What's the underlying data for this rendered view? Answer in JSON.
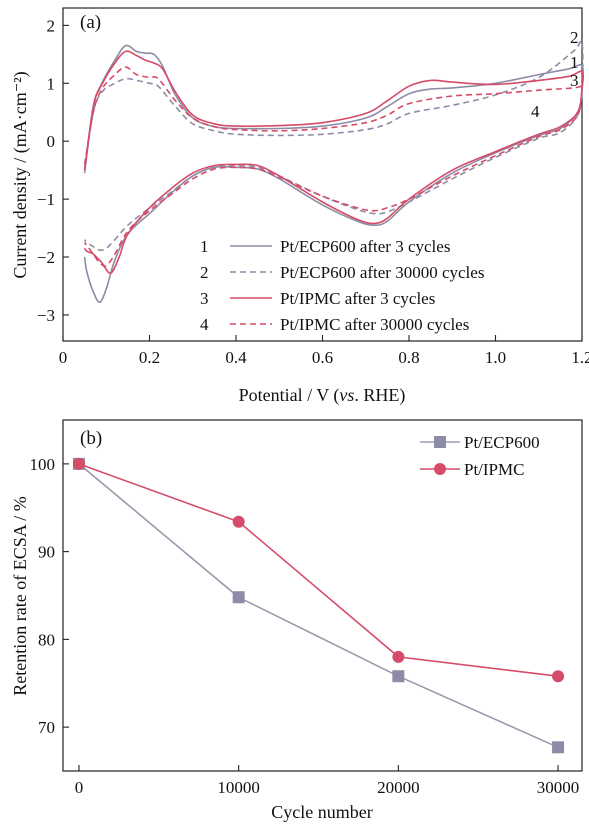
{
  "chart_data": [
    {
      "type": "line",
      "panel_label": "(a)",
      "xlabel_parts": [
        "Potential / V (",
        "vs",
        ". RHE)"
      ],
      "ylabel": "Current density / (mA·cm⁻²)",
      "xlim": [
        0,
        1.2
      ],
      "ylim": [
        -3.45,
        2.3
      ],
      "xticks": [
        0,
        0.2,
        0.4,
        0.6,
        0.8,
        1.0,
        1.2
      ],
      "xtick_labels": [
        "0",
        "0.2",
        "0.4",
        "0.6",
        "0.8",
        "1.0",
        "1.2"
      ],
      "yticks": [
        -3,
        -2,
        -1,
        0,
        1,
        2
      ],
      "ytick_labels": [
        "−3",
        "−2",
        "−1",
        "0",
        "1",
        "2"
      ],
      "legend": [
        {
          "num": "1",
          "label": "Pt/ECP600 after 3 cycles"
        },
        {
          "num": "2",
          "label": "Pt/ECP600 after 30000 cycles"
        },
        {
          "num": "3",
          "label": "Pt/IPMC after 3 cycles"
        },
        {
          "num": "4",
          "label": "Pt/IPMC after 30000 cycles"
        }
      ],
      "curve_numbers": [
        "2",
        "1",
        "3",
        "4"
      ],
      "series": [
        {
          "color": "#8c8ca6",
          "dash": "solid",
          "anodic": [
            [
              0.05,
              -0.55
            ],
            [
              0.07,
              0.6
            ],
            [
              0.09,
              1.0
            ],
            [
              0.12,
              1.4
            ],
            [
              0.145,
              1.65
            ],
            [
              0.17,
              1.55
            ],
            [
              0.19,
              1.52
            ],
            [
              0.21,
              1.5
            ],
            [
              0.23,
              1.3
            ],
            [
              0.26,
              0.8
            ],
            [
              0.3,
              0.4
            ],
            [
              0.35,
              0.25
            ],
            [
              0.4,
              0.22
            ],
            [
              0.5,
              0.22
            ],
            [
              0.6,
              0.26
            ],
            [
              0.7,
              0.4
            ],
            [
              0.75,
              0.6
            ],
            [
              0.8,
              0.82
            ],
            [
              0.85,
              0.9
            ],
            [
              0.9,
              0.92
            ],
            [
              1.0,
              1.0
            ],
            [
              1.1,
              1.15
            ],
            [
              1.17,
              1.25
            ],
            [
              1.2,
              1.3
            ],
            [
              1.2,
              0.9
            ]
          ],
          "cathodic": [
            [
              1.2,
              0.9
            ],
            [
              1.19,
              0.5
            ],
            [
              1.15,
              0.22
            ],
            [
              1.1,
              0.1
            ],
            [
              1.0,
              -0.2
            ],
            [
              0.9,
              -0.55
            ],
            [
              0.8,
              -1.05
            ],
            [
              0.75,
              -1.38
            ],
            [
              0.72,
              -1.45
            ],
            [
              0.68,
              -1.38
            ],
            [
              0.6,
              -1.1
            ],
            [
              0.5,
              -0.65
            ],
            [
              0.45,
              -0.48
            ],
            [
              0.4,
              -0.45
            ],
            [
              0.35,
              -0.45
            ],
            [
              0.3,
              -0.6
            ],
            [
              0.25,
              -0.9
            ],
            [
              0.2,
              -1.25
            ],
            [
              0.15,
              -1.6
            ],
            [
              0.12,
              -2.05
            ],
            [
              0.1,
              -2.55
            ],
            [
              0.085,
              -2.78
            ],
            [
              0.07,
              -2.6
            ],
            [
              0.055,
              -2.25
            ],
            [
              0.05,
              -2.0
            ]
          ]
        },
        {
          "color": "#8c8ca6",
          "dash": "dashed",
          "anodic": [
            [
              0.05,
              -0.5
            ],
            [
              0.07,
              0.5
            ],
            [
              0.09,
              0.85
            ],
            [
              0.12,
              1.0
            ],
            [
              0.145,
              1.08
            ],
            [
              0.17,
              1.05
            ],
            [
              0.2,
              1.0
            ],
            [
              0.22,
              0.95
            ],
            [
              0.26,
              0.6
            ],
            [
              0.3,
              0.3
            ],
            [
              0.35,
              0.18
            ],
            [
              0.4,
              0.12
            ],
            [
              0.5,
              0.1
            ],
            [
              0.6,
              0.12
            ],
            [
              0.7,
              0.2
            ],
            [
              0.75,
              0.3
            ],
            [
              0.8,
              0.48
            ],
            [
              0.9,
              0.62
            ],
            [
              1.0,
              0.8
            ],
            [
              1.1,
              1.1
            ],
            [
              1.18,
              1.55
            ],
            [
              1.2,
              1.7
            ],
            [
              1.2,
              0.9
            ]
          ],
          "cathodic": [
            [
              1.2,
              0.9
            ],
            [
              1.19,
              0.45
            ],
            [
              1.15,
              0.15
            ],
            [
              1.1,
              0.05
            ],
            [
              1.0,
              -0.28
            ],
            [
              0.9,
              -0.65
            ],
            [
              0.8,
              -1.05
            ],
            [
              0.75,
              -1.22
            ],
            [
              0.72,
              -1.25
            ],
            [
              0.68,
              -1.18
            ],
            [
              0.6,
              -0.95
            ],
            [
              0.5,
              -0.6
            ],
            [
              0.45,
              -0.45
            ],
            [
              0.4,
              -0.42
            ],
            [
              0.35,
              -0.45
            ],
            [
              0.3,
              -0.6
            ],
            [
              0.25,
              -0.88
            ],
            [
              0.2,
              -1.15
            ],
            [
              0.15,
              -1.45
            ],
            [
              0.12,
              -1.7
            ],
            [
              0.1,
              -1.85
            ],
            [
              0.085,
              -1.88
            ],
            [
              0.07,
              -1.82
            ],
            [
              0.055,
              -1.75
            ],
            [
              0.05,
              -1.7
            ]
          ]
        },
        {
          "color": "#d64b68",
          "dash": "solid",
          "anodic": [
            [
              0.05,
              -0.5
            ],
            [
              0.07,
              0.6
            ],
            [
              0.09,
              0.98
            ],
            [
              0.12,
              1.35
            ],
            [
              0.145,
              1.55
            ],
            [
              0.17,
              1.48
            ],
            [
              0.19,
              1.4
            ],
            [
              0.21,
              1.35
            ],
            [
              0.23,
              1.25
            ],
            [
              0.26,
              0.85
            ],
            [
              0.3,
              0.45
            ],
            [
              0.35,
              0.3
            ],
            [
              0.4,
              0.26
            ],
            [
              0.5,
              0.27
            ],
            [
              0.6,
              0.32
            ],
            [
              0.7,
              0.48
            ],
            [
              0.75,
              0.7
            ],
            [
              0.8,
              0.95
            ],
            [
              0.85,
              1.05
            ],
            [
              0.9,
              1.02
            ],
            [
              1.0,
              0.98
            ],
            [
              1.1,
              1.05
            ],
            [
              1.17,
              1.12
            ],
            [
              1.2,
              1.2
            ],
            [
              1.2,
              0.9
            ]
          ],
          "cathodic": [
            [
              1.2,
              0.9
            ],
            [
              1.19,
              0.5
            ],
            [
              1.15,
              0.25
            ],
            [
              1.1,
              0.12
            ],
            [
              1.0,
              -0.18
            ],
            [
              0.9,
              -0.5
            ],
            [
              0.8,
              -1.0
            ],
            [
              0.75,
              -1.33
            ],
            [
              0.72,
              -1.42
            ],
            [
              0.68,
              -1.35
            ],
            [
              0.6,
              -1.05
            ],
            [
              0.5,
              -0.6
            ],
            [
              0.45,
              -0.42
            ],
            [
              0.4,
              -0.4
            ],
            [
              0.35,
              -0.42
            ],
            [
              0.3,
              -0.55
            ],
            [
              0.25,
              -0.82
            ],
            [
              0.2,
              -1.15
            ],
            [
              0.15,
              -1.6
            ],
            [
              0.13,
              -2.0
            ],
            [
              0.11,
              -2.28
            ],
            [
              0.09,
              -2.1
            ],
            [
              0.07,
              -1.95
            ],
            [
              0.055,
              -1.9
            ],
            [
              0.05,
              -1.85
            ]
          ]
        },
        {
          "color": "#d64b68",
          "dash": "dashed",
          "anodic": [
            [
              0.05,
              -0.4
            ],
            [
              0.07,
              0.5
            ],
            [
              0.09,
              0.9
            ],
            [
              0.12,
              1.15
            ],
            [
              0.145,
              1.28
            ],
            [
              0.17,
              1.15
            ],
            [
              0.2,
              1.1
            ],
            [
              0.22,
              1.08
            ],
            [
              0.26,
              0.7
            ],
            [
              0.3,
              0.4
            ],
            [
              0.35,
              0.25
            ],
            [
              0.4,
              0.2
            ],
            [
              0.5,
              0.18
            ],
            [
              0.6,
              0.22
            ],
            [
              0.7,
              0.32
            ],
            [
              0.75,
              0.45
            ],
            [
              0.8,
              0.65
            ],
            [
              0.9,
              0.78
            ],
            [
              1.0,
              0.82
            ],
            [
              1.1,
              0.88
            ],
            [
              1.18,
              0.92
            ],
            [
              1.2,
              0.95
            ],
            [
              1.2,
              0.9
            ]
          ],
          "cathodic": [
            [
              1.2,
              0.9
            ],
            [
              1.19,
              0.45
            ],
            [
              1.15,
              0.2
            ],
            [
              1.1,
              0.08
            ],
            [
              1.0,
              -0.25
            ],
            [
              0.9,
              -0.6
            ],
            [
              0.8,
              -1.0
            ],
            [
              0.75,
              -1.15
            ],
            [
              0.72,
              -1.2
            ],
            [
              0.68,
              -1.15
            ],
            [
              0.6,
              -0.95
            ],
            [
              0.5,
              -0.62
            ],
            [
              0.45,
              -0.48
            ],
            [
              0.4,
              -0.45
            ],
            [
              0.35,
              -0.48
            ],
            [
              0.3,
              -0.65
            ],
            [
              0.25,
              -0.92
            ],
            [
              0.2,
              -1.2
            ],
            [
              0.15,
              -1.55
            ],
            [
              0.12,
              -1.95
            ],
            [
              0.1,
              -2.15
            ],
            [
              0.085,
              -2.1
            ],
            [
              0.07,
              -1.95
            ],
            [
              0.055,
              -1.8
            ],
            [
              0.05,
              -1.75
            ]
          ]
        }
      ]
    },
    {
      "type": "line",
      "panel_label": "(b)",
      "xlabel": "Cycle number",
      "ylabel": "Retention rate of ECSA / %",
      "xlim": [
        -1000,
        31500
      ],
      "ylim": [
        65,
        105
      ],
      "xticks": [
        0,
        10000,
        20000,
        30000
      ],
      "xtick_labels": [
        "0",
        "10000",
        "20000",
        "30000"
      ],
      "yticks": [
        70,
        80,
        90,
        100
      ],
      "ytick_labels": [
        "70",
        "80",
        "90",
        "100"
      ],
      "x": [
        0,
        10000,
        20000,
        30000
      ],
      "series": [
        {
          "name": "Pt/ECP600",
          "marker": "square",
          "color": "#8c8ca6",
          "line_color": "#9a9aae",
          "values": [
            100,
            84.8,
            75.8,
            67.7
          ]
        },
        {
          "name": "Pt/IPMC",
          "marker": "circle",
          "color": "#d64b68",
          "line_color": "#d64b68",
          "values": [
            100,
            93.4,
            78.0,
            75.8
          ]
        }
      ]
    }
  ]
}
